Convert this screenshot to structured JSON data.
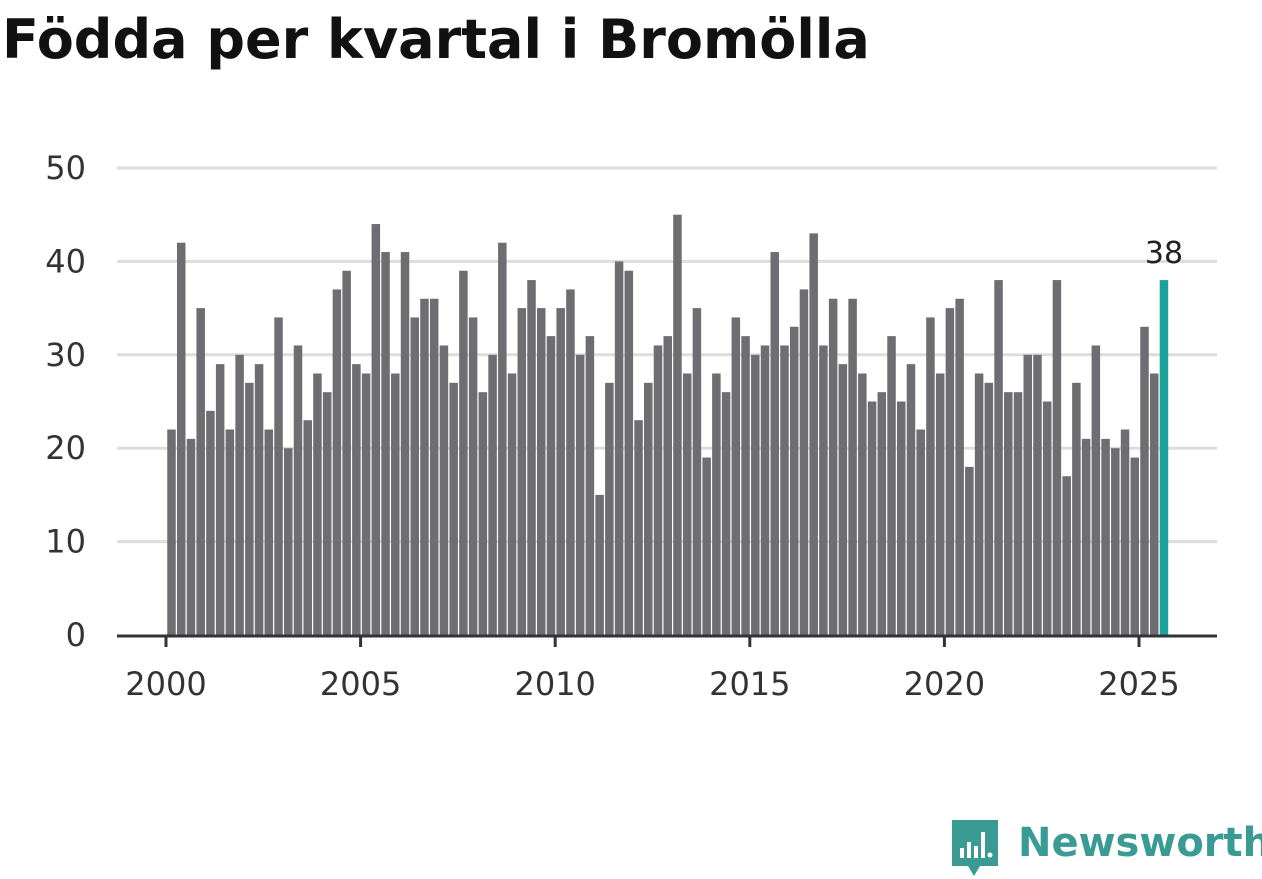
{
  "title": "Födda per kvartal i Bromölla",
  "brand": {
    "name": "Newsworthy",
    "color": "#3a9a94"
  },
  "colors": {
    "bar": "#6e6d71",
    "highlight": "#1aa39a",
    "grid": "#dddddd",
    "axis": "#333333"
  },
  "chart_data": {
    "type": "bar",
    "title": "Födda per kvartal i Bromölla",
    "xlabel": "",
    "ylabel": "",
    "x_unit": "quarter",
    "start": {
      "year": 2000,
      "quarter": 1
    },
    "values": [
      22,
      42,
      21,
      35,
      24,
      29,
      22,
      30,
      27,
      29,
      22,
      34,
      20,
      31,
      23,
      28,
      26,
      37,
      39,
      29,
      28,
      44,
      41,
      28,
      41,
      34,
      36,
      36,
      31,
      27,
      39,
      34,
      26,
      30,
      42,
      28,
      35,
      38,
      35,
      32,
      35,
      37,
      30,
      32,
      15,
      27,
      40,
      39,
      23,
      27,
      31,
      32,
      45,
      28,
      35,
      19,
      28,
      26,
      34,
      32,
      30,
      31,
      41,
      31,
      33,
      37,
      43,
      31,
      36,
      29,
      36,
      28,
      25,
      26,
      32,
      25,
      29,
      22,
      34,
      28,
      35,
      36,
      18,
      28,
      27,
      38,
      26,
      26,
      30,
      30,
      25,
      38,
      17,
      27,
      21,
      31,
      21,
      20,
      22,
      19,
      33,
      28,
      38
    ],
    "highlight_index": 102,
    "highlight_label": "38",
    "ylim": [
      0,
      50
    ],
    "yticks": [
      "0",
      "10",
      "20",
      "30",
      "40",
      "50"
    ],
    "xlim": [
      1998.75,
      2026.95
    ],
    "xticks": [
      "2000",
      "2005",
      "2010",
      "2015",
      "2020",
      "2025"
    ],
    "grid": true
  }
}
